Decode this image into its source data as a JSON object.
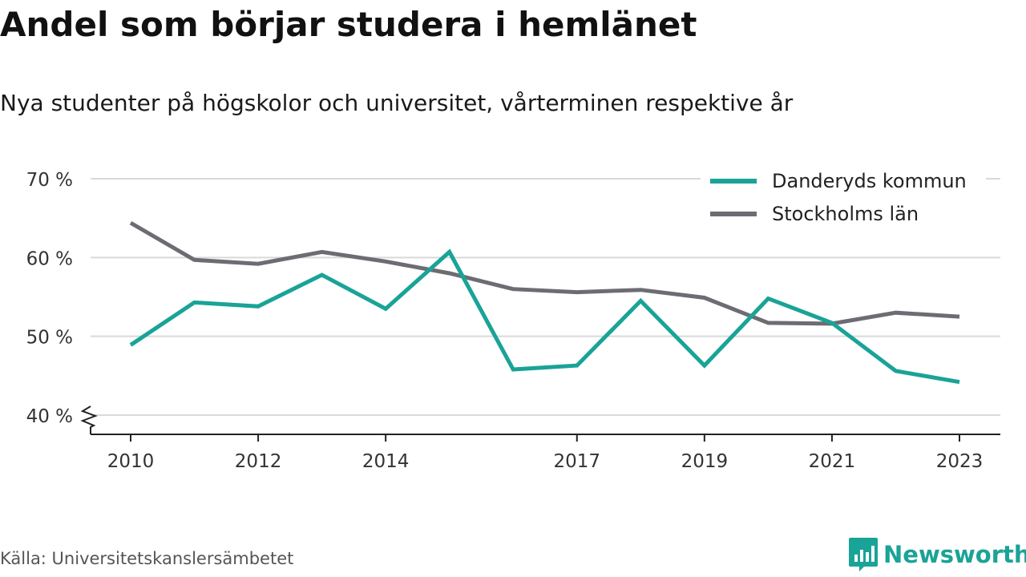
{
  "title": "Andel som börjar studera i hemlänet",
  "subtitle": "Nya studenter på högskolor och universitet, vårterminen respektive år",
  "source": "Källa: Universitetskanslersämbetet",
  "brand": {
    "name": "Newsworthy",
    "icon": "newsworthy-logo-icon",
    "color": "#1aa397"
  },
  "chart_data": {
    "type": "line",
    "x": [
      2010,
      2011,
      2012,
      2013,
      2014,
      2015,
      2016,
      2017,
      2018,
      2019,
      2020,
      2021,
      2022,
      2023
    ],
    "x_tick_labels": [
      "2010",
      "2012",
      "2014",
      "2017",
      "2019",
      "2021",
      "2023"
    ],
    "y_ticks": [
      40,
      50,
      60,
      70
    ],
    "y_tick_labels": [
      "40 %",
      "50 %",
      "60 %",
      "70 %"
    ],
    "ylim": [
      40,
      70
    ],
    "y_axis_break": true,
    "grid": "horizontal",
    "legend_position": "top-right",
    "series": [
      {
        "name": "Danderyds kommun",
        "color": "#1aa397",
        "values": [
          48.9,
          54.3,
          53.8,
          57.8,
          53.5,
          60.7,
          45.8,
          46.3,
          54.5,
          46.3,
          54.8,
          51.7,
          45.6,
          44.2
        ]
      },
      {
        "name": "Stockholms län",
        "color": "#6d6c73",
        "values": [
          64.4,
          59.7,
          59.2,
          60.7,
          59.5,
          58.0,
          56.0,
          55.6,
          55.9,
          54.9,
          51.7,
          51.6,
          53.0,
          52.5
        ]
      }
    ]
  }
}
